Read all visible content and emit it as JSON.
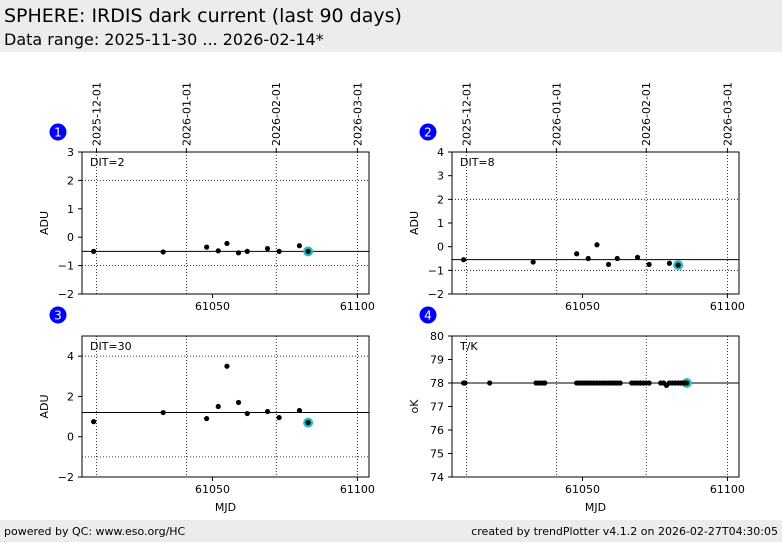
{
  "page": {
    "title": "SPHERE: IRDIS dark current (last 90 days)",
    "subtitle": "Data range: 2025-11-30 ... 2026-02-14*",
    "footer_left": "powered by QC: www.eso.org/HC",
    "footer_right": "created by trendPlotter v4.1.2 on 2026-02-27T04:30:05"
  },
  "colors": {
    "header_bg": "#ececec",
    "badge": "#0000ff",
    "highlight": "#20c0c0",
    "point": "#000000"
  },
  "date_ticks": [
    {
      "label": "2025-12-01",
      "mjd": 61010
    },
    {
      "label": "2026-01-01",
      "mjd": 61041
    },
    {
      "label": "2026-02-01",
      "mjd": 61072
    },
    {
      "label": "2026-03-01",
      "mjd": 61100
    }
  ],
  "chart_data": [
    {
      "type": "scatter",
      "panel": "1",
      "annotation": "DIT=2",
      "xlabel": "",
      "ylabel": "ADU",
      "xlim": [
        61005,
        61104
      ],
      "ylim": [
        -2,
        3
      ],
      "xticks": [
        61050,
        61100
      ],
      "yticks": [
        -2,
        -1,
        0,
        1,
        2,
        3
      ],
      "grid": "dotted",
      "ref_line": -0.5,
      "dotted_hlines": [
        -1,
        2
      ],
      "points": [
        [
          61009,
          -0.5
        ],
        [
          61033,
          -0.52
        ],
        [
          61048,
          -0.35
        ],
        [
          61052,
          -0.48
        ],
        [
          61055,
          -0.22
        ],
        [
          61059,
          -0.55
        ],
        [
          61062,
          -0.5
        ],
        [
          61069,
          -0.4
        ],
        [
          61073,
          -0.5
        ],
        [
          61080,
          -0.3
        ],
        [
          61083,
          -0.5
        ]
      ],
      "highlight": [
        61083,
        -0.5
      ]
    },
    {
      "type": "scatter",
      "panel": "2",
      "annotation": "DIT=8",
      "xlabel": "",
      "ylabel": "ADU",
      "xlim": [
        61005,
        61104
      ],
      "ylim": [
        -2,
        4
      ],
      "xticks": [
        61050,
        61100
      ],
      "yticks": [
        -2,
        -1,
        0,
        1,
        2,
        3,
        4
      ],
      "grid": "dotted",
      "ref_line": -0.55,
      "dotted_hlines": [
        -1,
        2
      ],
      "points": [
        [
          61009,
          -0.55
        ],
        [
          61033,
          -0.65
        ],
        [
          61048,
          -0.3
        ],
        [
          61052,
          -0.5
        ],
        [
          61055,
          0.08
        ],
        [
          61059,
          -0.75
        ],
        [
          61062,
          -0.5
        ],
        [
          61069,
          -0.45
        ],
        [
          61073,
          -0.75
        ],
        [
          61080,
          -0.7
        ],
        [
          61083,
          -0.78
        ]
      ],
      "highlight": [
        61083,
        -0.78
      ]
    },
    {
      "type": "scatter",
      "panel": "3",
      "annotation": "DIT=30",
      "xlabel": "MJD",
      "ylabel": "ADU",
      "xlim": [
        61005,
        61104
      ],
      "ylim": [
        -2,
        5
      ],
      "xticks": [
        61050,
        61100
      ],
      "yticks": [
        -2,
        0,
        2,
        4
      ],
      "grid": "dotted",
      "ref_line": 1.2,
      "dotted_hlines": [
        -1,
        4
      ],
      "points": [
        [
          61009,
          0.75
        ],
        [
          61033,
          1.2
        ],
        [
          61048,
          0.9
        ],
        [
          61052,
          1.5
        ],
        [
          61055,
          3.5
        ],
        [
          61059,
          1.7
        ],
        [
          61062,
          1.15
        ],
        [
          61069,
          1.25
        ],
        [
          61073,
          0.95
        ],
        [
          61080,
          1.3
        ],
        [
          61083,
          0.7
        ]
      ],
      "highlight": [
        61083,
        0.7
      ]
    },
    {
      "type": "scatter",
      "panel": "4",
      "annotation": "T/K",
      "xlabel": "MJD",
      "ylabel": "oK",
      "xlim": [
        61005,
        61104
      ],
      "ylim": [
        74,
        80
      ],
      "xticks": [
        61050,
        61100
      ],
      "yticks": [
        74,
        75,
        76,
        77,
        78,
        79,
        80
      ],
      "grid": "dotted",
      "ref_line": 78,
      "dotted_hlines": [],
      "points": [
        [
          61009,
          78
        ],
        [
          61009.5,
          78
        ],
        [
          61018,
          78
        ],
        [
          61034,
          78
        ],
        [
          61035,
          78
        ],
        [
          61036,
          78
        ],
        [
          61037,
          78
        ],
        [
          61048,
          78
        ],
        [
          61049,
          78
        ],
        [
          61050,
          78
        ],
        [
          61051,
          78
        ],
        [
          61052,
          78
        ],
        [
          61053,
          78
        ],
        [
          61054,
          78
        ],
        [
          61055,
          78
        ],
        [
          61056,
          78
        ],
        [
          61057,
          78
        ],
        [
          61058,
          78
        ],
        [
          61059,
          78
        ],
        [
          61060,
          78
        ],
        [
          61061,
          78
        ],
        [
          61062,
          78
        ],
        [
          61063,
          78
        ],
        [
          61067,
          78
        ],
        [
          61068,
          78
        ],
        [
          61069,
          78
        ],
        [
          61070,
          78
        ],
        [
          61071,
          78
        ],
        [
          61072,
          78
        ],
        [
          61073,
          78
        ],
        [
          61077,
          78
        ],
        [
          61078,
          78
        ],
        [
          61079,
          77.9
        ],
        [
          61080,
          78
        ],
        [
          61081,
          78
        ],
        [
          61082,
          78
        ],
        [
          61083,
          78
        ],
        [
          61084,
          78
        ],
        [
          61085,
          78
        ],
        [
          61086,
          78
        ]
      ],
      "highlight": [
        61086,
        78
      ]
    }
  ]
}
